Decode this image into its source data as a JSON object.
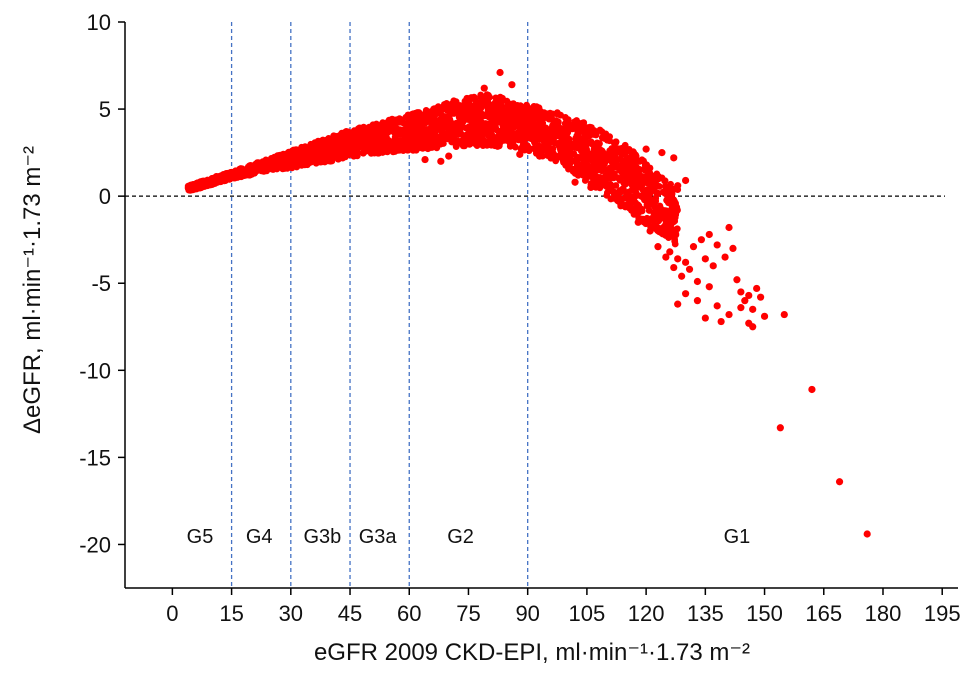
{
  "chart_data": {
    "type": "scatter",
    "title": "",
    "xlabel": "eGFR 2009 CKD-EPI, ml·min⁻¹·1.73 m⁻²",
    "ylabel": "ΔeGFR, ml·min⁻¹·1.73 m⁻²",
    "xlim": [
      -12,
      199
    ],
    "ylim": [
      -22.5,
      10
    ],
    "xticks": [
      0,
      15,
      30,
      45,
      60,
      75,
      90,
      105,
      120,
      135,
      150,
      165,
      180,
      195
    ],
    "yticks": [
      10,
      5,
      0,
      -5,
      -10,
      -15,
      -20
    ],
    "grid": false,
    "legend": "none",
    "point_color": "#ff0000",
    "reference_line": {
      "y": 0,
      "style": "dashed",
      "color": "#000000"
    },
    "stage_boundaries": {
      "x": [
        15,
        30,
        45,
        60,
        90
      ],
      "style": "dashed",
      "color": "#4472c4"
    },
    "stage_labels": [
      {
        "text": "G5",
        "x": 7
      },
      {
        "text": "G4",
        "x": 22
      },
      {
        "text": "G3b",
        "x": 38
      },
      {
        "text": "G3a",
        "x": 52
      },
      {
        "text": "G2",
        "x": 73
      },
      {
        "text": "G1",
        "x": 143
      }
    ],
    "stage_label_y": -19.5,
    "band": [
      [
        4,
        0.3,
        0.6
      ],
      [
        8,
        0.5,
        0.9
      ],
      [
        12,
        0.8,
        1.2
      ],
      [
        15,
        1.0,
        1.4
      ],
      [
        20,
        1.2,
        1.8
      ],
      [
        25,
        1.5,
        2.2
      ],
      [
        30,
        1.6,
        2.6
      ],
      [
        35,
        1.8,
        3.0
      ],
      [
        40,
        2.0,
        3.4
      ],
      [
        45,
        2.2,
        3.8
      ],
      [
        50,
        2.4,
        4.1
      ],
      [
        55,
        2.5,
        4.4
      ],
      [
        60,
        2.6,
        4.7
      ],
      [
        65,
        2.7,
        5.0
      ],
      [
        70,
        2.8,
        5.4
      ],
      [
        75,
        2.9,
        5.7
      ],
      [
        80,
        2.9,
        5.9
      ],
      [
        85,
        2.8,
        5.6
      ],
      [
        90,
        2.6,
        5.3
      ],
      [
        95,
        2.2,
        5.0
      ],
      [
        100,
        1.6,
        4.6
      ],
      [
        105,
        0.8,
        4.2
      ],
      [
        110,
        0.0,
        3.6
      ],
      [
        115,
        -0.8,
        2.9
      ],
      [
        120,
        -1.6,
        1.9
      ],
      [
        125,
        -2.4,
        0.9
      ],
      [
        128,
        -3.0,
        0.4
      ]
    ],
    "outliers": [
      [
        83,
        7.1
      ],
      [
        79,
        6.2
      ],
      [
        86,
        6.4
      ],
      [
        64,
        2.1
      ],
      [
        70,
        2.3
      ],
      [
        68,
        2.0
      ],
      [
        88,
        2.4
      ],
      [
        93,
        2.3
      ],
      [
        100,
        1.9
      ],
      [
        103,
        1.8
      ],
      [
        107,
        1.7
      ],
      [
        102,
        0.8
      ],
      [
        106,
        0.5
      ],
      [
        112,
        0.1
      ],
      [
        120,
        2.7
      ],
      [
        124,
        2.5
      ],
      [
        127,
        2.2
      ],
      [
        130,
        0.9
      ],
      [
        128,
        0.6
      ],
      [
        126,
        0.3
      ],
      [
        118,
        -1.5
      ],
      [
        116,
        -0.4
      ],
      [
        121,
        -2.0
      ],
      [
        123,
        -2.9
      ],
      [
        125,
        -3.5
      ],
      [
        126,
        -3.2
      ],
      [
        127,
        -4.1
      ],
      [
        128,
        -3.6
      ],
      [
        129,
        -4.6
      ],
      [
        130,
        -3.8
      ],
      [
        131,
        -4.2
      ],
      [
        132,
        -2.9
      ],
      [
        133,
        -4.9
      ],
      [
        134,
        -2.5
      ],
      [
        135,
        -3.6
      ],
      [
        136,
        -2.2
      ],
      [
        137,
        -4.0
      ],
      [
        138,
        -2.8
      ],
      [
        140,
        -3.5
      ],
      [
        141,
        -1.8
      ],
      [
        142,
        -3.0
      ],
      [
        143,
        -4.8
      ],
      [
        144,
        -5.5
      ],
      [
        145,
        -6.0
      ],
      [
        146,
        -5.7
      ],
      [
        147,
        -6.5
      ],
      [
        148,
        -5.3
      ],
      [
        146,
        -7.3
      ],
      [
        139,
        -7.2
      ],
      [
        135,
        -7.0
      ],
      [
        133,
        -6.0
      ],
      [
        128,
        -6.2
      ],
      [
        130,
        -5.6
      ],
      [
        136,
        -5.2
      ],
      [
        138,
        -6.3
      ],
      [
        141,
        -6.8
      ],
      [
        144,
        -6.4
      ],
      [
        147,
        -7.5
      ],
      [
        149,
        -5.8
      ],
      [
        150,
        -6.9
      ],
      [
        155,
        -6.8
      ],
      [
        162,
        -11.1
      ],
      [
        154,
        -13.3
      ],
      [
        169,
        -16.4
      ],
      [
        176,
        -19.4
      ]
    ]
  }
}
